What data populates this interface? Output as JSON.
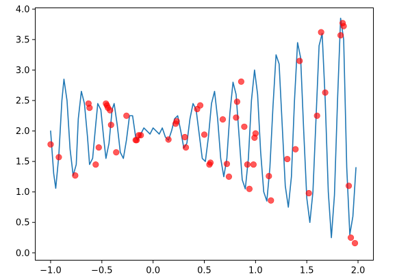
{
  "chart_data": {
    "type": "line",
    "title": "",
    "xlabel": "",
    "ylabel": "",
    "xlim": [
      -1.15,
      2.15
    ],
    "ylim": [
      -0.12,
      4.02
    ],
    "grid": false,
    "x_ticks": [
      -1.0,
      -0.5,
      0.0,
      0.5,
      1.0,
      1.5,
      2.0
    ],
    "x_tick_labels": [
      "−1.0",
      "−0.5",
      "0.0",
      "0.5",
      "1.0",
      "1.5",
      "2.0"
    ],
    "y_ticks": [
      0.0,
      0.5,
      1.0,
      1.5,
      2.0,
      2.5,
      3.0,
      3.5,
      4.0
    ],
    "y_tick_labels": [
      "0.0",
      "0.5",
      "1.0",
      "1.5",
      "2.0",
      "2.5",
      "3.0",
      "3.5",
      "4.0"
    ],
    "series": [
      {
        "kind": "line",
        "color": "#1f77b4",
        "x": [
          -1.0,
          -0.97,
          -0.95,
          -0.92,
          -0.89,
          -0.87,
          -0.84,
          -0.81,
          -0.78,
          -0.75,
          -0.73,
          -0.7,
          -0.67,
          -0.64,
          -0.62,
          -0.59,
          -0.56,
          -0.54,
          -0.51,
          -0.48,
          -0.46,
          -0.43,
          -0.4,
          -0.38,
          -0.35,
          -0.32,
          -0.29,
          -0.26,
          -0.23,
          -0.2,
          -0.17,
          -0.15,
          -0.12,
          -0.09,
          -0.06,
          -0.03,
          0.0,
          0.03,
          0.06,
          0.09,
          0.12,
          0.15,
          0.18,
          0.21,
          0.24,
          0.27,
          0.3,
          0.33,
          0.36,
          0.39,
          0.42,
          0.45,
          0.48,
          0.51,
          0.54,
          0.57,
          0.6,
          0.63,
          0.66,
          0.69,
          0.72,
          0.75,
          0.78,
          0.81,
          0.84,
          0.87,
          0.9,
          0.93,
          0.96,
          0.99,
          1.02,
          1.05,
          1.08,
          1.11,
          1.14,
          1.17,
          1.2,
          1.23,
          1.26,
          1.29,
          1.32,
          1.35,
          1.38,
          1.41,
          1.44,
          1.47,
          1.5,
          1.53,
          1.56,
          1.59,
          1.62,
          1.65,
          1.68,
          1.71,
          1.74,
          1.77,
          1.8,
          1.83,
          1.86,
          1.89,
          1.92,
          1.95,
          1.98
        ],
        "y": [
          2.0,
          1.3,
          1.06,
          1.6,
          2.5,
          2.85,
          2.5,
          1.7,
          1.27,
          1.45,
          2.2,
          2.65,
          2.45,
          1.9,
          1.45,
          1.55,
          2.1,
          2.45,
          2.35,
          1.85,
          1.55,
          1.8,
          2.35,
          2.45,
          2.1,
          1.65,
          1.55,
          1.85,
          2.25,
          2.25,
          1.9,
          1.85,
          1.95,
          2.05,
          2.0,
          1.95,
          2.05,
          2.0,
          1.95,
          2.05,
          1.9,
          1.85,
          2.0,
          2.2,
          2.25,
          2.0,
          1.72,
          1.8,
          2.2,
          2.45,
          2.35,
          1.95,
          1.55,
          1.5,
          1.9,
          2.45,
          2.65,
          2.2,
          1.55,
          1.25,
          1.55,
          2.3,
          2.8,
          2.6,
          1.9,
          1.2,
          1.05,
          1.55,
          2.5,
          3.0,
          2.6,
          1.65,
          1.0,
          0.85,
          1.4,
          2.4,
          3.25,
          3.1,
          2.1,
          1.1,
          0.75,
          1.25,
          2.5,
          3.45,
          3.2,
          2.0,
          0.9,
          0.5,
          1.0,
          2.2,
          3.4,
          3.6,
          2.5,
          1.0,
          0.25,
          0.95,
          2.5,
          3.85,
          3.5,
          1.4,
          0.3,
          0.6,
          1.4
        ],
        "name": ""
      },
      {
        "kind": "scatter",
        "color": "#ff0000",
        "x": [
          -1.0,
          -0.92,
          -0.76,
          -0.63,
          -0.62,
          -0.56,
          -0.53,
          -0.46,
          -0.45,
          -0.44,
          -0.42,
          -0.41,
          -0.36,
          -0.26,
          -0.17,
          -0.16,
          -0.14,
          -0.12,
          0.15,
          0.22,
          0.23,
          0.31,
          0.32,
          0.43,
          0.46,
          0.5,
          0.55,
          0.56,
          0.68,
          0.72,
          0.74,
          0.81,
          0.82,
          0.86,
          0.89,
          0.92,
          0.94,
          0.98,
          0.99,
          1.0,
          1.13,
          1.15,
          1.31,
          1.39,
          1.43,
          1.52,
          1.6,
          1.64,
          1.68,
          1.83,
          1.85,
          1.86,
          1.91,
          1.93,
          1.97
        ],
        "y": [
          1.78,
          1.57,
          1.27,
          2.45,
          2.38,
          1.45,
          1.73,
          2.45,
          2.42,
          2.38,
          2.34,
          2.1,
          1.65,
          2.25,
          1.85,
          1.85,
          1.93,
          1.93,
          1.86,
          2.12,
          2.16,
          1.9,
          1.73,
          2.36,
          2.42,
          1.94,
          1.45,
          1.48,
          2.19,
          1.46,
          1.25,
          2.22,
          2.48,
          2.81,
          2.07,
          1.45,
          1.05,
          1.45,
          1.89,
          1.96,
          1.26,
          0.86,
          1.54,
          1.7,
          3.15,
          0.98,
          2.25,
          3.62,
          2.63,
          3.57,
          3.77,
          3.72,
          1.1,
          0.25,
          0.16
        ],
        "name": ""
      }
    ]
  }
}
